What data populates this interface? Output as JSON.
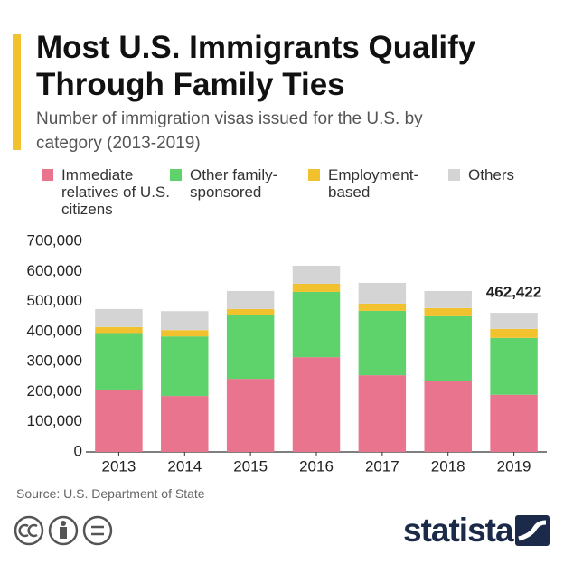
{
  "chart_data": {
    "type": "stacked_bar",
    "title": "Most U.S. Immigrants Qualify Through Family Ties",
    "subtitle": "Number of immigration visas issued for the U.S. by category (2013-2019)",
    "categories": [
      "2013",
      "2014",
      "2015",
      "2016",
      "2017",
      "2018",
      "2019"
    ],
    "series": [
      {
        "name": "Immediate relatives of U.S. citizens",
        "color": "#e8748d",
        "values": [
          205000,
          186000,
          243000,
          315000,
          255000,
          237000,
          190000
        ]
      },
      {
        "name": "Other family-sponsored",
        "color": "#5fd36b",
        "values": [
          190000,
          198000,
          211000,
          217000,
          214000,
          214000,
          189000
        ]
      },
      {
        "name": "Employment-based",
        "color": "#f2c12e",
        "values": [
          20000,
          21000,
          21000,
          27000,
          24000,
          27000,
          30000
        ]
      },
      {
        "name": "Others",
        "color": "#d4d4d4",
        "values": [
          60000,
          63000,
          60000,
          60000,
          69000,
          57000,
          53422
        ]
      }
    ],
    "total_annotation": {
      "category": "2019",
      "value": 462422,
      "label": "462,422"
    },
    "ylim": [
      0,
      700000
    ],
    "yticks": [
      {
        "value": 0,
        "label": "0"
      },
      {
        "value": 100000,
        "label": "100,000"
      },
      {
        "value": 200000,
        "label": "200,000"
      },
      {
        "value": 300000,
        "label": "300,000"
      },
      {
        "value": 400000,
        "label": "400,000"
      },
      {
        "value": 500000,
        "label": "500,000"
      },
      {
        "value": 600000,
        "label": "600,000"
      },
      {
        "value": 700000,
        "label": "700,000"
      }
    ],
    "grid": false,
    "source": "Source: U.S. Department of State",
    "brand": "statista"
  }
}
